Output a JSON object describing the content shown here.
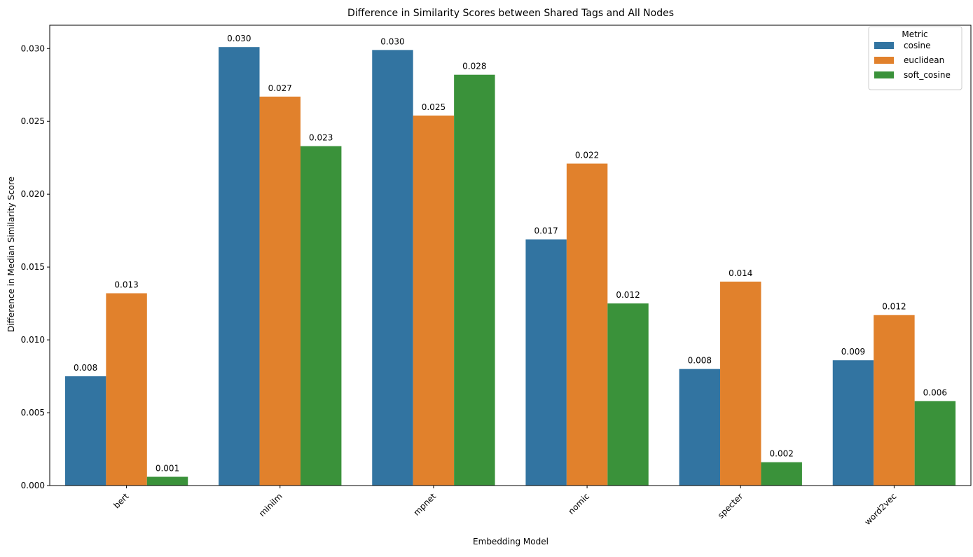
{
  "chart_data": {
    "type": "bar",
    "title": "Difference in Similarity Scores between Shared Tags and All Nodes",
    "xlabel": "Embedding Model",
    "ylabel": "Difference in Median Similarity Score",
    "categories": [
      "bert",
      "minilm",
      "mpnet",
      "nomic",
      "specter",
      "word2vec"
    ],
    "series": [
      {
        "name": "cosine",
        "color": "#3274a1",
        "values": [
          0.0075,
          0.0301,
          0.0299,
          0.0169,
          0.008,
          0.0086
        ],
        "labels": [
          "0.008",
          "0.030",
          "0.030",
          "0.017",
          "0.008",
          "0.009"
        ]
      },
      {
        "name": "euclidean",
        "color": "#e1812c",
        "values": [
          0.0132,
          0.0267,
          0.0254,
          0.0221,
          0.014,
          0.0117
        ],
        "labels": [
          "0.013",
          "0.027",
          "0.025",
          "0.022",
          "0.014",
          "0.012"
        ]
      },
      {
        "name": "soft_cosine",
        "color": "#3a923a",
        "values": [
          0.0006,
          0.0233,
          0.0282,
          0.0125,
          0.0016,
          0.0058
        ],
        "labels": [
          "0.001",
          "0.023",
          "0.028",
          "0.012",
          "0.002",
          "0.006"
        ]
      }
    ],
    "yticks": [
      0.0,
      0.005,
      0.01,
      0.015,
      0.02,
      0.025,
      0.03
    ],
    "ytick_labels": [
      "0.000",
      "0.005",
      "0.010",
      "0.015",
      "0.020",
      "0.025",
      "0.030"
    ],
    "ylim": [
      0,
      0.0316
    ],
    "legend": {
      "title": "Metric",
      "position": "top-right"
    },
    "grid": false
  }
}
